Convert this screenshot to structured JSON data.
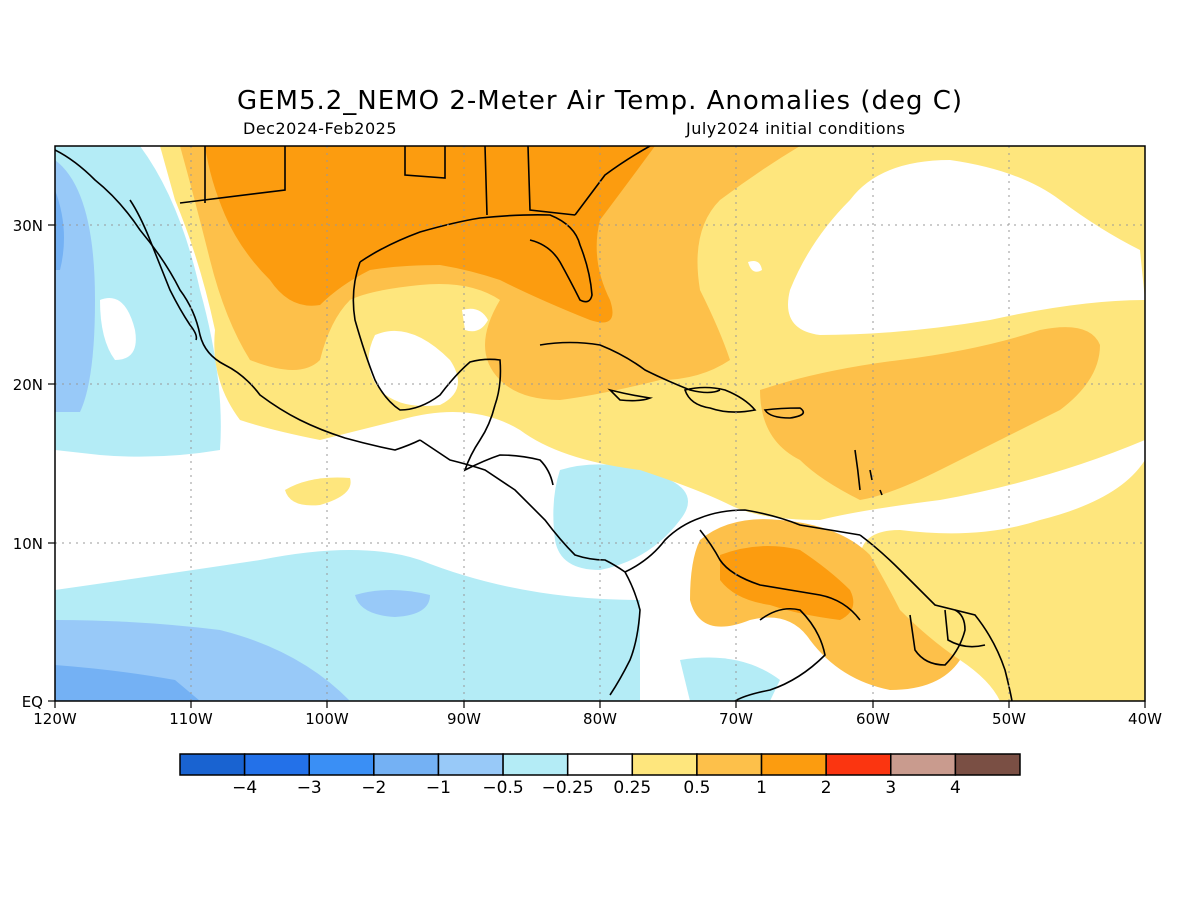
{
  "title": "GEM5.2_NEMO 2-Meter Air Temp. Anomalies (deg C)",
  "subtitle_left": "Dec2024-Feb2025",
  "subtitle_right": "July2024 initial conditions",
  "map": {
    "lon_range": [
      -120,
      -40
    ],
    "lat_range": [
      0,
      35
    ],
    "x_ticks": [
      "120W",
      "110W",
      "100W",
      "90W",
      "80W",
      "70W",
      "60W",
      "50W",
      "40W"
    ],
    "y_ticks": [
      "EQ",
      "10N",
      "20N",
      "30N"
    ],
    "land_outline_color": "#000000",
    "grid": true
  },
  "colorbar": {
    "colors": [
      "#1963d1",
      "#2371e9",
      "#3a8ff5",
      "#74b1f4",
      "#98c9f8",
      "#b4ecf6",
      "#ffffff",
      "#fee67d",
      "#fdc04a",
      "#fc9c0f",
      "#fb3510",
      "#c99b8e",
      "#7a4f44"
    ],
    "labels": [
      "-4",
      "-3",
      "-2",
      "-1",
      "-0.5",
      "-0.25",
      "0.25",
      "0.5",
      "1",
      "2",
      "3",
      "4"
    ]
  }
}
